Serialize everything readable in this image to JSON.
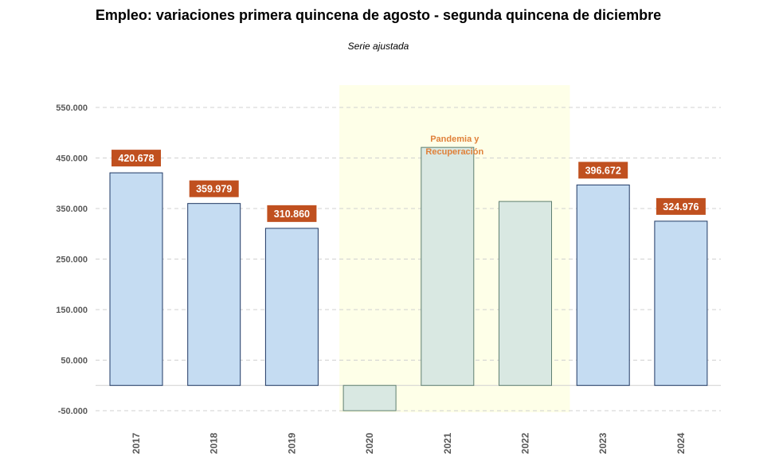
{
  "chart_data": {
    "type": "bar",
    "title": "Empleo: variaciones primera quincena de agosto - segunda quincena de diciembre",
    "subtitle": "Serie ajustada",
    "categories": [
      "2017",
      "2018",
      "2019",
      "2020",
      "2021",
      "2022",
      "2023",
      "2024"
    ],
    "values": [
      420678,
      359979,
      310860,
      -50000,
      471000,
      364000,
      396672,
      324976
    ],
    "data_labels": [
      "420.678",
      "359.979",
      "310.860",
      "",
      "",
      "",
      "396.672",
      "324.976"
    ],
    "highlight": {
      "categories": [
        "2020",
        "2021",
        "2022"
      ],
      "label": "Pandemia y Recuperación"
    },
    "yticks": [
      -50000,
      50000,
      150000,
      250000,
      350000,
      450000,
      550000
    ],
    "ytick_labels": [
      "-50.000",
      "50.000",
      "150.000",
      "250.000",
      "350.000",
      "450.000",
      "550.000"
    ],
    "ylim": [
      -50000,
      550000
    ],
    "grid": true,
    "colors": {
      "normal": "#C5DCF2",
      "normal_edge": "#1F3864",
      "pandemic": "#D9E8E2",
      "pandemic_edge": "#5F7F70",
      "shade": "#FEFFE8",
      "label_bg": "#C0501F",
      "annotation": "#E0813A"
    }
  }
}
